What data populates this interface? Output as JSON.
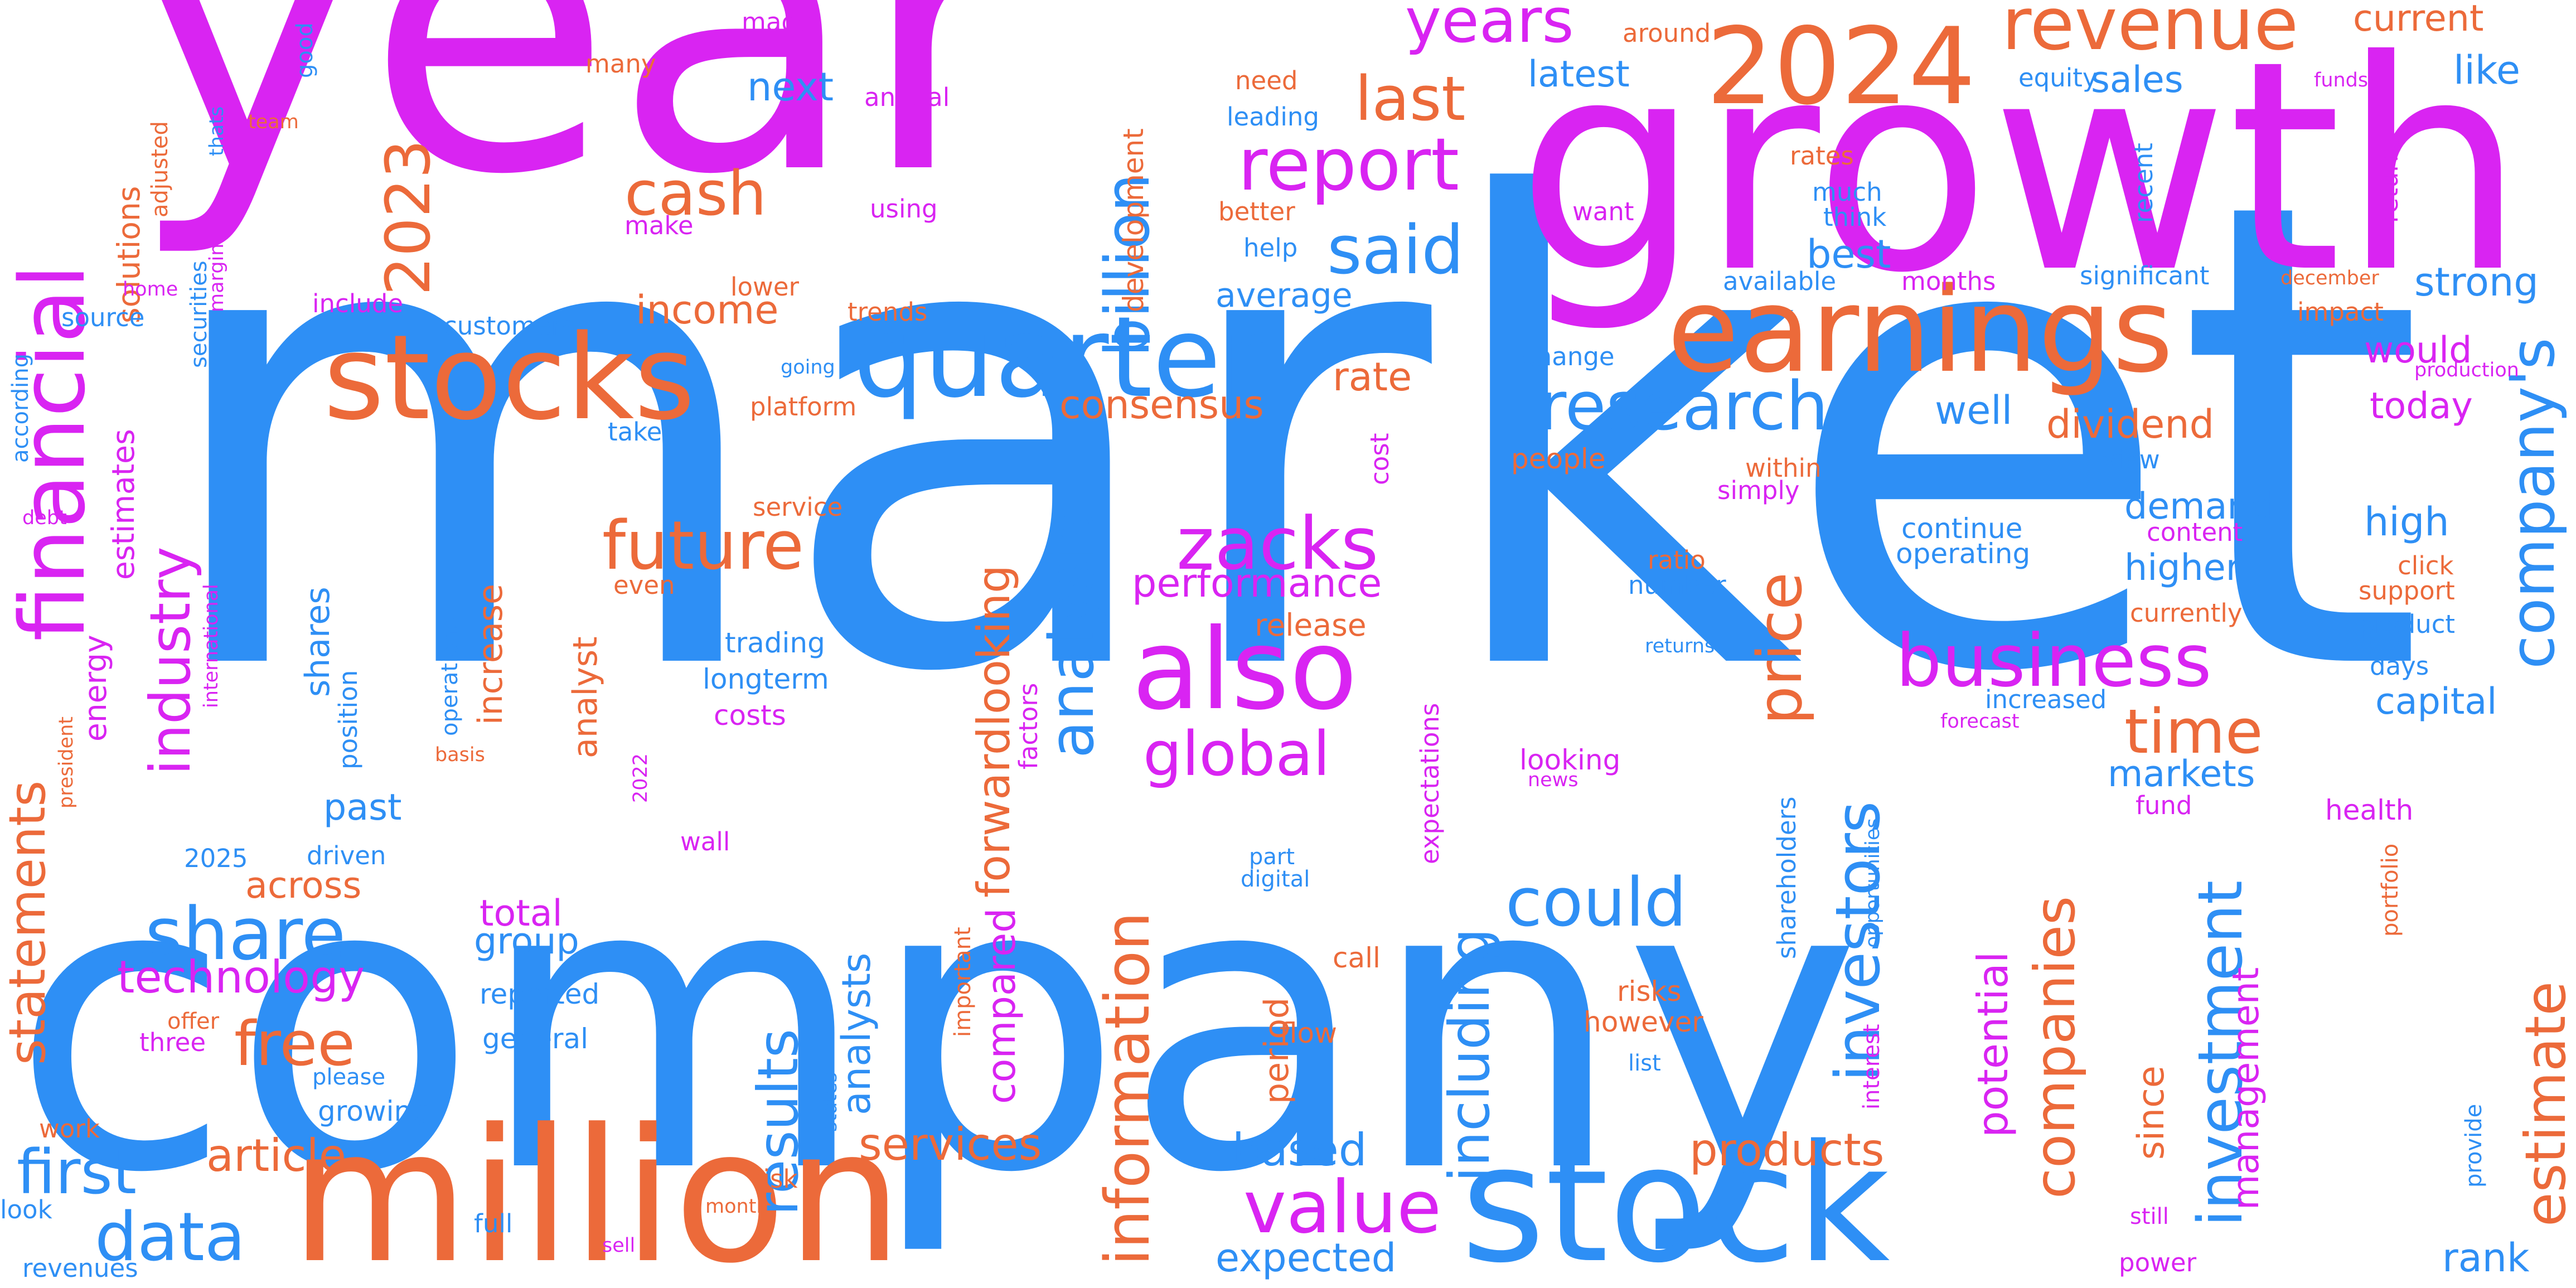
{
  "colors": {
    "blue": "#2e8ff5",
    "orange": "#ec6a3a",
    "magenta": "#d924f2"
  },
  "words": [
    {
      "text": "market",
      "color": "blue"
    },
    {
      "text": "company",
      "color": "blue"
    },
    {
      "text": "year",
      "color": "magenta"
    },
    {
      "text": "growth",
      "color": "magenta"
    },
    {
      "text": "million",
      "color": "orange"
    },
    {
      "text": "stock",
      "color": "blue"
    },
    {
      "text": "quarter",
      "color": "blue"
    },
    {
      "text": "earnings",
      "color": "orange"
    },
    {
      "text": "stocks",
      "color": "orange"
    },
    {
      "text": "also",
      "color": "magenta"
    },
    {
      "text": "2024",
      "color": "orange"
    },
    {
      "text": "financial",
      "color": "magenta"
    },
    {
      "text": "revenue",
      "color": "orange"
    },
    {
      "text": "report",
      "color": "magenta"
    },
    {
      "text": "said",
      "color": "blue"
    },
    {
      "text": "research",
      "color": "blue"
    },
    {
      "text": "zacks",
      "color": "magenta"
    },
    {
      "text": "business",
      "color": "magenta"
    },
    {
      "text": "future",
      "color": "orange"
    },
    {
      "text": "share",
      "color": "blue"
    },
    {
      "text": "first",
      "color": "blue"
    },
    {
      "text": "data",
      "color": "blue"
    },
    {
      "text": "could",
      "color": "blue"
    },
    {
      "text": "value",
      "color": "magenta"
    },
    {
      "text": "global",
      "color": "magenta"
    },
    {
      "text": "free",
      "color": "orange"
    },
    {
      "text": "years",
      "color": "magenta"
    },
    {
      "text": "last",
      "color": "orange"
    },
    {
      "text": "cash",
      "color": "orange"
    },
    {
      "text": "2023",
      "color": "orange"
    },
    {
      "text": "billion",
      "color": "blue"
    },
    {
      "text": "analysis",
      "color": "blue"
    },
    {
      "text": "industry",
      "color": "magenta"
    },
    {
      "text": "price",
      "color": "orange"
    },
    {
      "text": "company's",
      "color": "blue"
    },
    {
      "text": "time",
      "color": "orange"
    },
    {
      "text": "investors",
      "color": "blue"
    },
    {
      "text": "companies",
      "color": "orange"
    },
    {
      "text": "investment",
      "color": "blue"
    },
    {
      "text": "information",
      "color": "orange"
    },
    {
      "text": "including",
      "color": "blue"
    },
    {
      "text": "results",
      "color": "blue"
    },
    {
      "text": "estimate",
      "color": "orange"
    },
    {
      "text": "statements",
      "color": "orange"
    },
    {
      "text": "article",
      "color": "orange"
    },
    {
      "text": "technology",
      "color": "magenta"
    },
    {
      "text": "products",
      "color": "orange"
    },
    {
      "text": "services",
      "color": "orange"
    },
    {
      "text": "based",
      "color": "blue"
    },
    {
      "text": "expected",
      "color": "blue"
    },
    {
      "text": "rank",
      "color": "blue"
    },
    {
      "text": "forwardlooking",
      "color": "orange"
    },
    {
      "text": "performance",
      "color": "magenta"
    },
    {
      "text": "consensus",
      "color": "orange"
    },
    {
      "text": "income",
      "color": "orange"
    },
    {
      "text": "dividend",
      "color": "orange"
    },
    {
      "text": "strong",
      "color": "blue"
    },
    {
      "text": "current",
      "color": "orange"
    },
    {
      "text": "like",
      "color": "blue"
    },
    {
      "text": "sales",
      "color": "blue"
    },
    {
      "text": "latest",
      "color": "blue"
    },
    {
      "text": "next",
      "color": "blue"
    },
    {
      "text": "best",
      "color": "blue"
    },
    {
      "text": "average",
      "color": "blue"
    },
    {
      "text": "rate",
      "color": "orange"
    },
    {
      "text": "well",
      "color": "blue"
    },
    {
      "text": "would",
      "color": "magenta"
    },
    {
      "text": "today",
      "color": "magenta"
    },
    {
      "text": "demand",
      "color": "blue"
    },
    {
      "text": "higher",
      "color": "blue"
    },
    {
      "text": "high",
      "color": "blue"
    },
    {
      "text": "capital",
      "color": "blue"
    },
    {
      "text": "markets",
      "color": "blue"
    },
    {
      "text": "potential",
      "color": "magenta"
    },
    {
      "text": "management",
      "color": "magenta"
    },
    {
      "text": "since",
      "color": "orange"
    },
    {
      "text": "total",
      "color": "magenta"
    },
    {
      "text": "group",
      "color": "blue"
    },
    {
      "text": "across",
      "color": "orange"
    },
    {
      "text": "past",
      "color": "blue"
    },
    {
      "text": "release",
      "color": "orange"
    },
    {
      "text": "analysts",
      "color": "blue"
    },
    {
      "text": "compared",
      "color": "magenta"
    },
    {
      "text": "period",
      "color": "orange"
    },
    {
      "text": "shares",
      "color": "blue"
    },
    {
      "text": "increase",
      "color": "orange"
    },
    {
      "text": "energy",
      "color": "magenta"
    },
    {
      "text": "estimates",
      "color": "magenta"
    },
    {
      "text": "solutions",
      "color": "orange"
    },
    {
      "text": "analyst",
      "color": "orange"
    },
    {
      "text": "development",
      "color": "orange"
    },
    {
      "text": "growing",
      "color": "blue"
    },
    {
      "text": "reported",
      "color": "blue"
    },
    {
      "text": "general",
      "color": "blue"
    },
    {
      "text": "trading",
      "color": "blue"
    },
    {
      "text": "longterm",
      "color": "blue"
    },
    {
      "text": "costs",
      "color": "magenta"
    },
    {
      "text": "continue",
      "color": "blue"
    },
    {
      "text": "operating",
      "color": "blue"
    },
    {
      "text": "number",
      "color": "blue"
    },
    {
      "text": "ratio",
      "color": "orange"
    },
    {
      "text": "simply",
      "color": "magenta"
    },
    {
      "text": "within",
      "color": "orange"
    },
    {
      "text": "people",
      "color": "orange"
    },
    {
      "text": "change",
      "color": "blue"
    },
    {
      "text": "looking",
      "color": "magenta"
    },
    {
      "text": "risks",
      "color": "orange"
    },
    {
      "text": "however",
      "color": "orange"
    },
    {
      "text": "call",
      "color": "orange"
    },
    {
      "text": "flow",
      "color": "orange"
    },
    {
      "text": "fund",
      "color": "magenta"
    },
    {
      "text": "health",
      "color": "magenta"
    },
    {
      "text": "days",
      "color": "blue"
    },
    {
      "text": "product",
      "color": "blue"
    },
    {
      "text": "support",
      "color": "orange"
    },
    {
      "text": "click",
      "color": "orange"
    },
    {
      "text": "content",
      "color": "magenta"
    },
    {
      "text": "view",
      "color": "blue"
    },
    {
      "text": "currently",
      "color": "orange"
    },
    {
      "text": "increased",
      "color": "blue"
    },
    {
      "text": "forecast",
      "color": "magenta"
    },
    {
      "text": "impact",
      "color": "orange"
    },
    {
      "text": "significant",
      "color": "blue"
    },
    {
      "text": "december",
      "color": "orange"
    },
    {
      "text": "available",
      "color": "blue"
    },
    {
      "text": "months",
      "color": "magenta"
    },
    {
      "text": "think",
      "color": "blue"
    },
    {
      "text": "much",
      "color": "blue"
    },
    {
      "text": "rates",
      "color": "orange"
    },
    {
      "text": "want",
      "color": "magenta"
    },
    {
      "text": "recent",
      "color": "blue"
    },
    {
      "text": "return",
      "color": "magenta"
    },
    {
      "text": "production",
      "color": "magenta"
    },
    {
      "text": "funds",
      "color": "magenta"
    },
    {
      "text": "equity",
      "color": "blue"
    },
    {
      "text": "around",
      "color": "orange"
    },
    {
      "text": "need",
      "color": "orange"
    },
    {
      "text": "leading",
      "color": "blue"
    },
    {
      "text": "better",
      "color": "orange"
    },
    {
      "text": "help",
      "color": "blue"
    },
    {
      "text": "lower",
      "color": "orange"
    },
    {
      "text": "trends",
      "color": "orange"
    },
    {
      "text": "made",
      "color": "magenta"
    },
    {
      "text": "many",
      "color": "orange"
    },
    {
      "text": "annual",
      "color": "magenta"
    },
    {
      "text": "using",
      "color": "magenta"
    },
    {
      "text": "make",
      "color": "magenta"
    },
    {
      "text": "include",
      "color": "magenta"
    },
    {
      "text": "customers",
      "color": "blue"
    },
    {
      "text": "platform",
      "color": "orange"
    },
    {
      "text": "going",
      "color": "blue"
    },
    {
      "text": "take",
      "color": "blue"
    },
    {
      "text": "cost",
      "color": "magenta"
    },
    {
      "text": "service",
      "color": "orange"
    },
    {
      "text": "even",
      "color": "orange"
    },
    {
      "text": "factors",
      "color": "magenta"
    },
    {
      "text": "expectations",
      "color": "magenta"
    },
    {
      "text": "shareholders",
      "color": "blue"
    },
    {
      "text": "opportunities",
      "color": "blue"
    },
    {
      "text": "interest",
      "color": "magenta"
    },
    {
      "text": "states",
      "color": "blue"
    },
    {
      "text": "important",
      "color": "orange"
    },
    {
      "text": "part",
      "color": "blue"
    },
    {
      "text": "digital",
      "color": "blue"
    },
    {
      "text": "list",
      "color": "blue"
    },
    {
      "text": "news",
      "color": "magenta"
    },
    {
      "text": "returns",
      "color": "blue"
    },
    {
      "text": "portfolio",
      "color": "orange"
    },
    {
      "text": "provide",
      "color": "blue"
    },
    {
      "text": "still",
      "color": "magenta"
    },
    {
      "text": "power",
      "color": "magenta"
    },
    {
      "text": "wall",
      "color": "magenta"
    },
    {
      "text": "2022",
      "color": "magenta"
    },
    {
      "text": "risk",
      "color": "orange"
    },
    {
      "text": "month",
      "color": "orange"
    },
    {
      "text": "sell",
      "color": "magenta"
    },
    {
      "text": "full",
      "color": "blue"
    },
    {
      "text": "revenues",
      "color": "blue"
    },
    {
      "text": "look",
      "color": "blue"
    },
    {
      "text": "work",
      "color": "orange"
    },
    {
      "text": "please",
      "color": "blue"
    },
    {
      "text": "offer",
      "color": "orange"
    },
    {
      "text": "three",
      "color": "magenta"
    },
    {
      "text": "driven",
      "color": "blue"
    },
    {
      "text": "2025",
      "color": "blue"
    },
    {
      "text": "position",
      "color": "blue"
    },
    {
      "text": "operations",
      "color": "blue"
    },
    {
      "text": "basis",
      "color": "orange"
    },
    {
      "text": "international",
      "color": "magenta"
    },
    {
      "text": "president",
      "color": "orange"
    },
    {
      "text": "debt",
      "color": "magenta"
    },
    {
      "text": "according",
      "color": "blue"
    },
    {
      "text": "source",
      "color": "blue"
    },
    {
      "text": "securities",
      "color": "blue"
    },
    {
      "text": "margin",
      "color": "magenta"
    },
    {
      "text": "home",
      "color": "magenta"
    },
    {
      "text": "adjusted",
      "color": "orange"
    },
    {
      "text": "good",
      "color": "blue"
    },
    {
      "text": "thats",
      "color": "blue"
    },
    {
      "text": "team",
      "color": "orange"
    }
  ]
}
